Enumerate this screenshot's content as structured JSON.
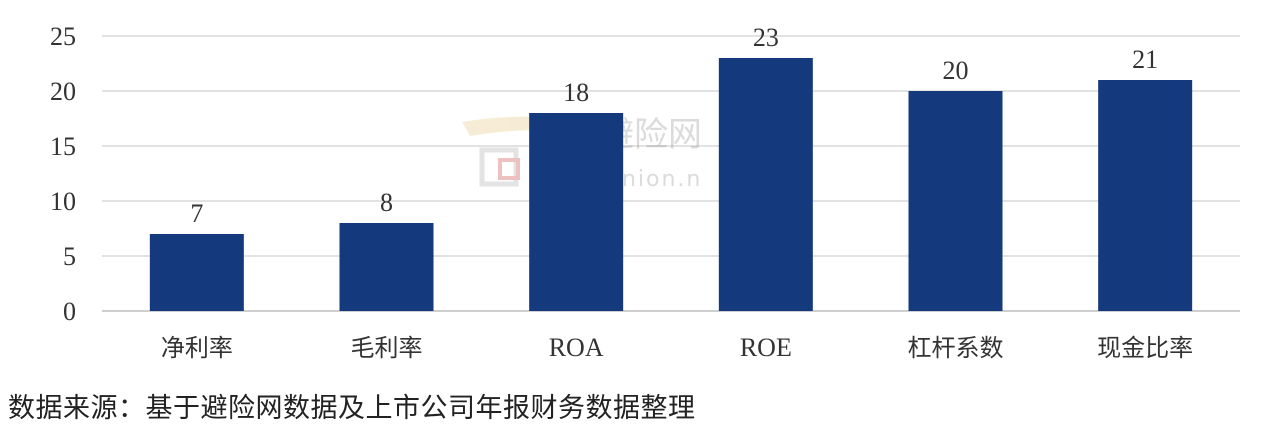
{
  "colors": {
    "bar": "#14397d",
    "grid": "#d9d9d9",
    "axis": "#bfbfbf",
    "text": "#333333"
  },
  "chart_data": {
    "type": "bar",
    "categories": [
      "净利率",
      "毛利率",
      "ROA",
      "ROE",
      "杠杆系数",
      "现金比率"
    ],
    "values": [
      7,
      8,
      18,
      23,
      20,
      21
    ],
    "data_labels": [
      "7",
      "8",
      "18",
      "23",
      "20",
      "21"
    ],
    "title": "",
    "xlabel": "",
    "ylabel": "",
    "ylim": [
      0,
      25
    ],
    "yticks": [
      0,
      5,
      10,
      15,
      20,
      25
    ],
    "grid": true,
    "legend": "none"
  },
  "watermark": {
    "cn_text": "避险网",
    "latin_text": "union.n"
  },
  "footer": {
    "source": "数据来源：基于避险网数据及上市公司年报财务数据整理"
  }
}
